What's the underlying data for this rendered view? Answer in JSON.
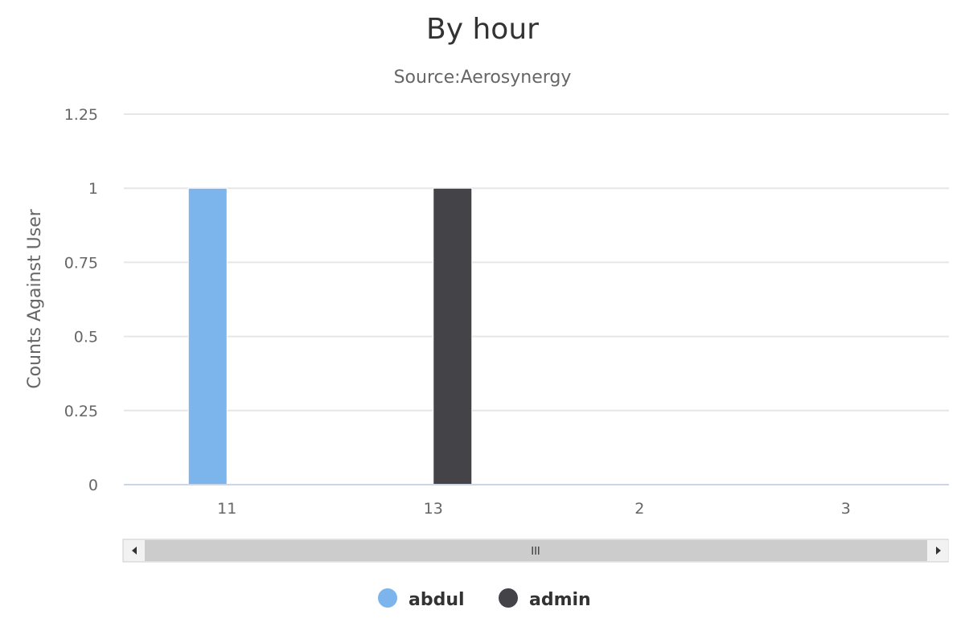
{
  "chart_data": {
    "type": "bar",
    "title": "By hour",
    "subtitle": "Source:Aerosynergy",
    "xlabel": "",
    "ylabel": "Counts Against User",
    "categories": [
      "11",
      "13",
      "2",
      "3"
    ],
    "series": [
      {
        "name": "abdul",
        "color": "#7cb5ec",
        "values": [
          1,
          0,
          0,
          0
        ]
      },
      {
        "name": "admin",
        "color": "#434348",
        "values": [
          0,
          1,
          0,
          0
        ]
      }
    ],
    "ylim": [
      0,
      1.25
    ],
    "yticks": [
      0,
      0.25,
      0.5,
      0.75,
      1,
      1.25
    ],
    "ytick_labels": [
      "0",
      "0.25",
      "0.5",
      "0.75",
      "1",
      "1.25"
    ],
    "grid": true,
    "legend_position": "bottom-center",
    "scrollbar": {
      "grip_label": "III"
    }
  }
}
